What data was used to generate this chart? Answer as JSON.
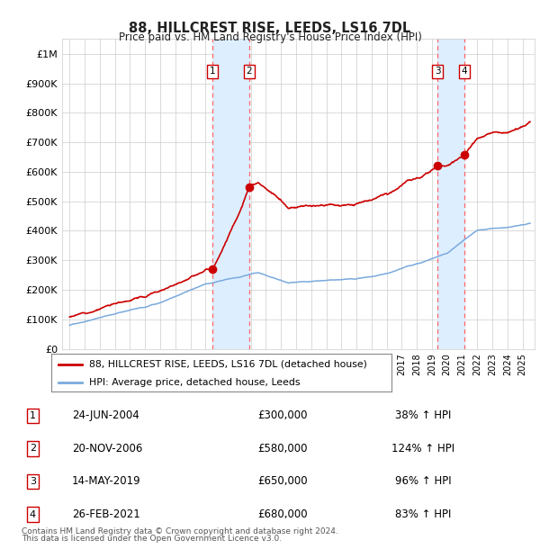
{
  "title": "88, HILLCREST RISE, LEEDS, LS16 7DL",
  "subtitle": "Price paid vs. HM Land Registry's House Price Index (HPI)",
  "legend_line1": "88, HILLCREST RISE, LEEDS, LS16 7DL (detached house)",
  "legend_line2": "HPI: Average price, detached house, Leeds",
  "footer1": "Contains HM Land Registry data © Crown copyright and database right 2024.",
  "footer2": "This data is licensed under the Open Government Licence v3.0.",
  "sales": [
    {
      "num": 1,
      "date": "24-JUN-2004",
      "price": 300000,
      "pct": "38%",
      "x_year": 2004.48
    },
    {
      "num": 2,
      "date": "20-NOV-2006",
      "price": 580000,
      "pct": "124%",
      "x_year": 2006.89
    },
    {
      "num": 3,
      "date": "14-MAY-2019",
      "price": 650000,
      "pct": "96%",
      "x_year": 2019.37
    },
    {
      "num": 4,
      "date": "26-FEB-2021",
      "price": 680000,
      "pct": "83%",
      "x_year": 2021.15
    }
  ],
  "hpi_color": "#7aaadd",
  "price_color": "#cc0000",
  "shade_color": "#ddeeff",
  "vline_color": "#ff6666",
  "grid_color": "#cccccc",
  "background_color": "#ffffff",
  "ylim": [
    0,
    1050000
  ],
  "yticks": [
    0,
    100000,
    200000,
    300000,
    400000,
    500000,
    600000,
    700000,
    800000,
    900000,
    1000000
  ],
  "xlim_start": 1994.5,
  "xlim_end": 2025.8
}
